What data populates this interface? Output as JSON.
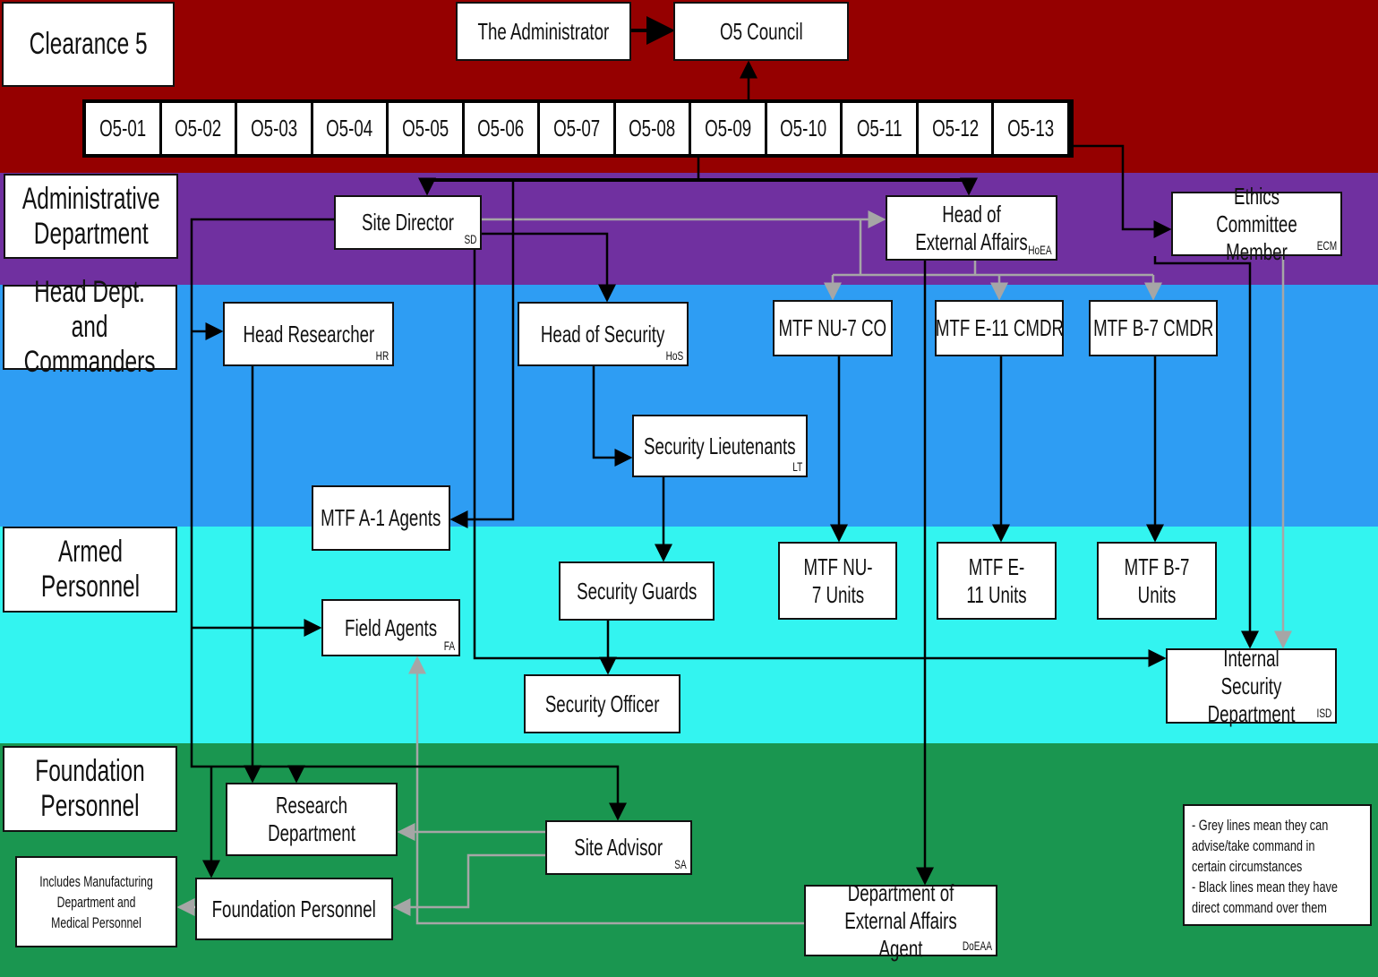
{
  "colors": {
    "clearance5": "#950000",
    "administrative": "#7030a0",
    "head_dept": "#2e9df3",
    "armed": "#33f4f0",
    "foundation": "#1a9650",
    "black_line": "#000000",
    "grey_line": "#a6a6a6"
  },
  "tiers": {
    "clearance5": "Clearance 5",
    "administrative": "Administrative Department",
    "head_dept": "Head Dept. and Commanders",
    "armed": "Armed Personnel",
    "foundation": "Foundation Personnel"
  },
  "nodes": {
    "administrator": "The Administrator",
    "council": "O5 Council",
    "site_director": {
      "label": "Site Director",
      "abbr": "SD"
    },
    "hoea": {
      "label": "Head of External Affairs",
      "abbr": "HoEA"
    },
    "ecm": {
      "label": "Ethics Committee Member",
      "abbr": "ECM"
    },
    "head_researcher": {
      "label": "Head Researcher",
      "abbr": "HR"
    },
    "head_security": {
      "label": "Head of Security",
      "abbr": "HoS"
    },
    "nu7_co": "MTF NU-7 CO",
    "e11_cmdr": "MTF E-11 CMDR",
    "b7_cmdr": "MTF B-7 CMDR",
    "lieutenants": {
      "label": "Security Lieutenants",
      "abbr": "LT"
    },
    "a1_agents": "MTF A-1 Agents",
    "security_guards": "Security Guards",
    "nu7_units": "MTF NU-7 Units",
    "e11_units": "MTF E-11 Units",
    "b7_units": "MTF B-7 Units",
    "field_agents": {
      "label": "Field Agents",
      "abbr": "FA"
    },
    "isd": {
      "label": "Internal Security Department",
      "abbr": "ISD"
    },
    "security_officer": "Security Officer",
    "research_dept": "Research Department",
    "site_advisor": {
      "label": "Site Advisor",
      "abbr": "SA"
    },
    "includes": "Includes Manufacturing Department and Medical Personnel",
    "foundation_personnel": "Foundation Personnel",
    "doeaa": {
      "label": "Department of External Affairs Agent",
      "abbr": "DoEAA"
    }
  },
  "o5_members": [
    "O5-01",
    "O5-02",
    "O5-03",
    "O5-04",
    "O5-05",
    "O5-06",
    "O5-07",
    "O5-08",
    "O5-09",
    "O5-10",
    "O5-11",
    "O5-12",
    "O5-13"
  ],
  "legend": [
    "- Grey lines mean they can",
    "advise/take command in",
    "certain circumstances",
    "- Black lines mean they have",
    "direct command over them"
  ]
}
